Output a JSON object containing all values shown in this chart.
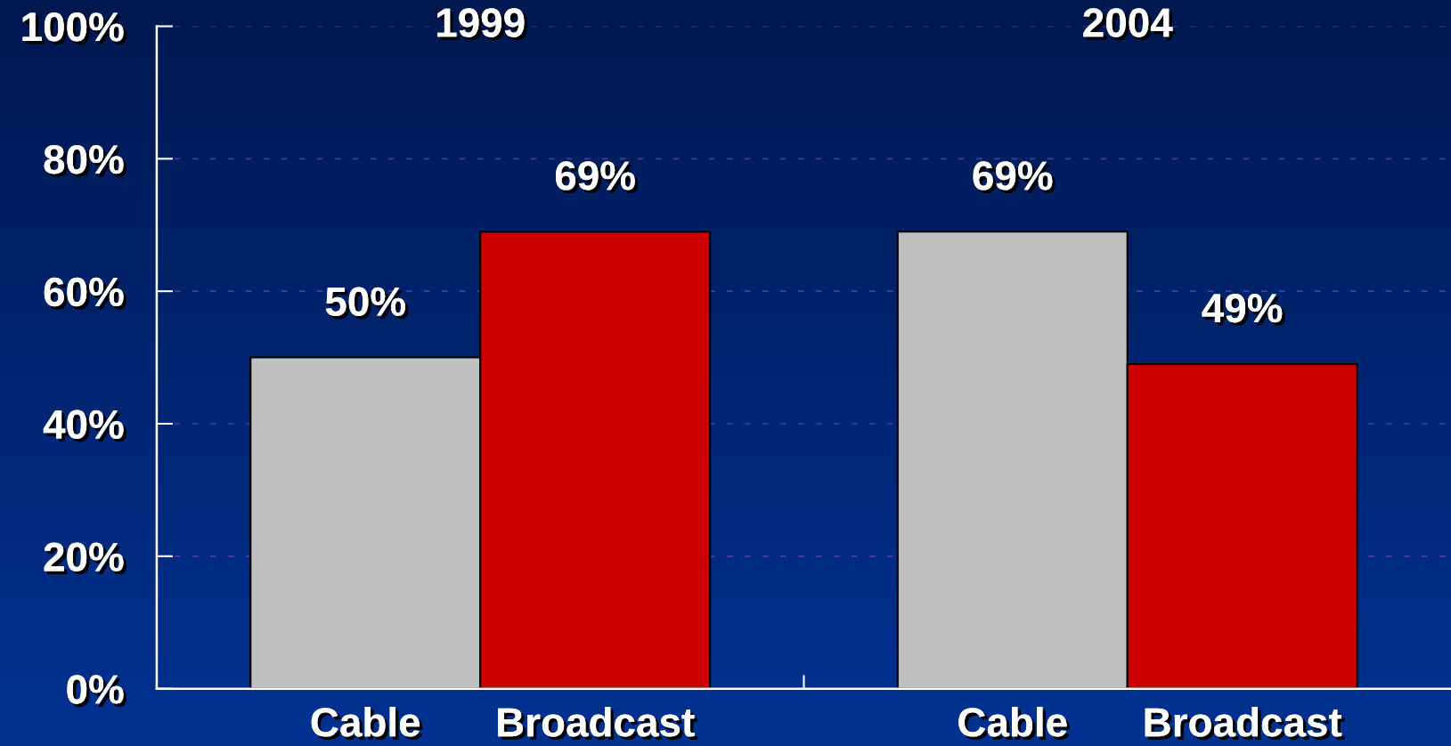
{
  "chart_data": {
    "type": "bar",
    "categories": [
      "1999",
      "2004"
    ],
    "series": [
      {
        "name": "Cable",
        "color": "#c0c0c0",
        "values": [
          50,
          69
        ],
        "value_labels": [
          "50%",
          "69%"
        ]
      },
      {
        "name": "Broadcast",
        "color": "#cc0000",
        "values": [
          69,
          49
        ],
        "value_labels": [
          "69%",
          "49%"
        ]
      }
    ],
    "ylim": [
      0,
      100
    ],
    "yticks": [
      {
        "value": 0,
        "label": "0%"
      },
      {
        "value": 20,
        "label": "20%"
      },
      {
        "value": 40,
        "label": "40%"
      },
      {
        "value": 60,
        "label": "60%"
      },
      {
        "value": 80,
        "label": "80%"
      },
      {
        "value": 100,
        "label": "100%"
      }
    ],
    "grid": "y"
  }
}
